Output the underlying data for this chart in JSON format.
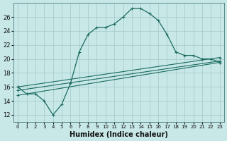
{
  "xlabel": "Humidex (Indice chaleur)",
  "background_color": "#c8e8e8",
  "line_color": "#1a6b5e",
  "grid_color": "#a8cccc",
  "xlim": [
    -0.5,
    23.5
  ],
  "ylim": [
    11,
    28
  ],
  "x_ticks": [
    0,
    1,
    2,
    3,
    4,
    5,
    6,
    7,
    8,
    9,
    10,
    11,
    12,
    13,
    14,
    15,
    16,
    17,
    18,
    19,
    20,
    21,
    22,
    23
  ],
  "y_ticks": [
    12,
    14,
    16,
    18,
    20,
    22,
    24,
    26
  ],
  "main_line_x": [
    0,
    1,
    2,
    3,
    4,
    5,
    6,
    7,
    8,
    9,
    10,
    11,
    12,
    13,
    14,
    15,
    16,
    17,
    18,
    19,
    20,
    21,
    22,
    23
  ],
  "main_line_y": [
    16,
    15,
    15,
    14,
    12,
    13.5,
    16.5,
    21,
    23.5,
    24.5,
    24.5,
    25,
    26,
    27.2,
    27.2,
    26.5,
    25.5,
    23.5,
    21,
    20.5,
    20.5,
    20,
    20,
    19.5
  ],
  "reg_lines": [
    {
      "x": [
        0,
        23
      ],
      "y": [
        16.0,
        20.2
      ]
    },
    {
      "x": [
        0,
        23
      ],
      "y": [
        15.5,
        19.7
      ]
    },
    {
      "x": [
        0,
        23
      ],
      "y": [
        14.8,
        19.5
      ]
    }
  ]
}
